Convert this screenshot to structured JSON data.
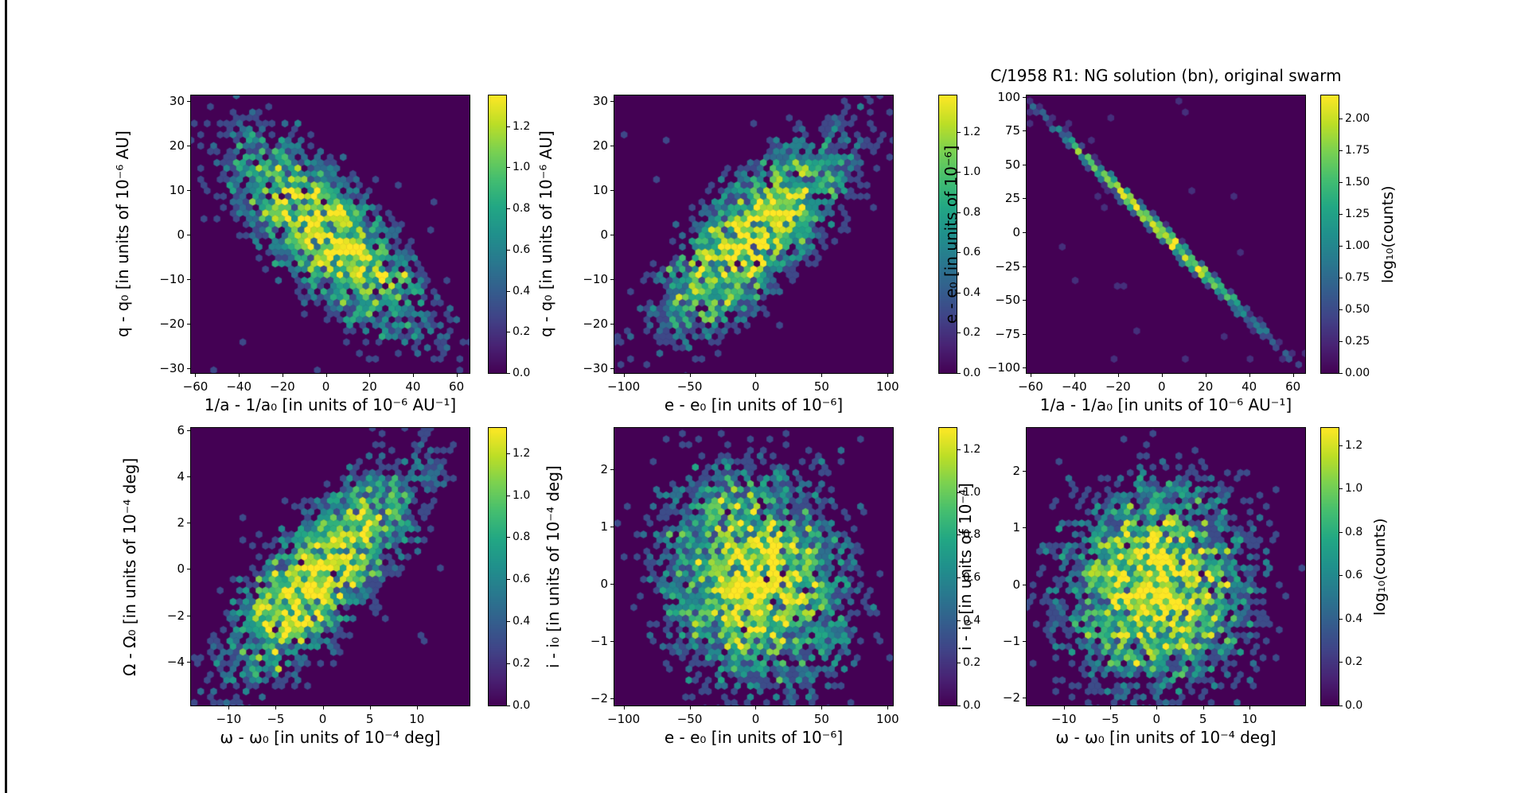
{
  "title": "C/1958 R1: NG solution (bn), original swarm",
  "colors": {
    "figure_background": "#ffffff",
    "panel_background": "#440154",
    "colormap": "viridis",
    "colormap_min": "#440154",
    "colormap_max": "#fde725",
    "text": "#000000",
    "spine": "#000000"
  },
  "chart_data": [
    {
      "type": "hexbin",
      "position": "top-left",
      "xlabel": "1/a - 1/a₀ [in units of 10⁻⁶ AU⁻¹]",
      "ylabel": "q - q₀ [in units of 10⁻⁶ AU]",
      "xlim": [
        -62,
        66
      ],
      "ylim": [
        -31,
        31.3
      ],
      "xticks": [
        -60,
        -40,
        -20,
        0,
        20,
        40,
        60
      ],
      "yticks": [
        -30,
        -20,
        -10,
        0,
        10,
        20,
        30
      ],
      "distribution": {
        "shape": "gaussian",
        "center": [
          0,
          0
        ],
        "sigma": [
          20,
          10
        ],
        "rho": -0.76,
        "peak_count": 21,
        "background": 0.004
      },
      "colorbar": {
        "ticks": [
          0,
          0.2,
          0.4,
          0.6,
          0.8,
          1.0,
          1.2
        ],
        "vmax": 1.35,
        "decimals": 1,
        "label": ""
      }
    },
    {
      "type": "hexbin",
      "position": "top-middle",
      "xlabel": "e - e₀ [in units of 10⁻⁶]",
      "ylabel": "q - q₀ [in units of 10⁻⁶ AU]",
      "xlim": [
        -107,
        104
      ],
      "ylim": [
        -31,
        31.3
      ],
      "xticks": [
        -100,
        -50,
        0,
        50,
        100
      ],
      "yticks": [
        -30,
        -20,
        -10,
        0,
        10,
        20,
        30
      ],
      "distribution": {
        "shape": "gaussian",
        "center": [
          0,
          0
        ],
        "sigma": [
          32,
          10
        ],
        "rho": 0.76,
        "peak_count": 23,
        "background": 0.004
      },
      "colorbar": {
        "ticks": [
          0,
          0.2,
          0.4,
          0.6,
          0.8,
          1.0,
          1.2
        ],
        "vmax": 1.38,
        "decimals": 1,
        "label": ""
      }
    },
    {
      "type": "hexbin",
      "position": "top-right",
      "xlabel": "1/a - 1/a₀ [in units of 10⁻⁶ AU⁻¹]",
      "ylabel": "e - e₀ [in units of 10⁻⁶]",
      "xlim": [
        -61.8,
        65.6
      ],
      "ylim": [
        -104,
        101
      ],
      "xticks": [
        -60,
        -40,
        -20,
        0,
        20,
        40,
        60
      ],
      "yticks": [
        -100,
        -75,
        -50,
        -25,
        0,
        25,
        50,
        75,
        100
      ],
      "distribution": {
        "shape": "line",
        "slope": -1.58,
        "sigma_along": 20,
        "width": 2.5,
        "peak_count": 150,
        "background": 0.008
      },
      "colorbar": {
        "ticks": [
          0,
          0.25,
          0.5,
          0.75,
          1.0,
          1.25,
          1.5,
          1.75,
          2.0
        ],
        "vmax": 2.18,
        "decimals": 2,
        "label": "log₁₀(counts)"
      }
    },
    {
      "type": "hexbin",
      "position": "bottom-left",
      "xlabel": "ω - ω₀ [in units of 10⁻⁴ deg]",
      "ylabel": "Ω - Ω₀ [in units of 10⁻⁴ deg]",
      "xlim": [
        -14,
        15.6
      ],
      "ylim": [
        -5.9,
        6.1
      ],
      "xticks": [
        -10,
        -5,
        0,
        5,
        10
      ],
      "yticks": [
        -4,
        -2,
        0,
        2,
        4,
        6
      ],
      "distribution": {
        "shape": "gaussian",
        "center": [
          0,
          -0.2
        ],
        "sigma": [
          4.6,
          2.1
        ],
        "rho": 0.78,
        "peak_count": 21,
        "background": 0.004
      },
      "colorbar": {
        "ticks": [
          0,
          0.2,
          0.4,
          0.6,
          0.8,
          1.0,
          1.2
        ],
        "vmax": 1.32,
        "decimals": 1,
        "label": ""
      }
    },
    {
      "type": "hexbin",
      "position": "bottom-middle",
      "xlabel": "e - e₀ [in units of 10⁻⁶]",
      "ylabel": "i - i₀ [in units of 10⁻⁴ deg]",
      "xlim": [
        -107,
        104
      ],
      "ylim": [
        -2.12,
        2.72
      ],
      "xticks": [
        -100,
        -50,
        0,
        50,
        100
      ],
      "yticks": [
        -2,
        -1,
        0,
        1,
        2
      ],
      "distribution": {
        "shape": "gaussian",
        "center": [
          0,
          0.1
        ],
        "sigma": [
          30,
          0.82
        ],
        "rho": -0.12,
        "peak_count": 20,
        "background": 0.004
      },
      "colorbar": {
        "ticks": [
          0,
          0.2,
          0.4,
          0.6,
          0.8,
          1.0,
          1.2
        ],
        "vmax": 1.3,
        "decimals": 1,
        "label": ""
      }
    },
    {
      "type": "hexbin",
      "position": "bottom-right",
      "xlabel": "ω - ω₀ [in units of 10⁻⁴ deg]",
      "ylabel": "i - i₀ [in units of 10⁻⁴]",
      "xlim": [
        -14,
        16
      ],
      "ylim": [
        -2.14,
        2.76
      ],
      "xticks": [
        -10,
        -5,
        0,
        5,
        10
      ],
      "yticks": [
        -2,
        -1,
        0,
        1,
        2
      ],
      "distribution": {
        "shape": "gaussian",
        "center": [
          0,
          -0.05
        ],
        "sigma": [
          4.3,
          0.8
        ],
        "rho": 0.06,
        "peak_count": 19,
        "background": 0.004
      },
      "colorbar": {
        "ticks": [
          0,
          0.2,
          0.4,
          0.6,
          0.8,
          1.0,
          1.2
        ],
        "vmax": 1.28,
        "decimals": 1,
        "label": "log₁₀(counts)"
      }
    }
  ]
}
